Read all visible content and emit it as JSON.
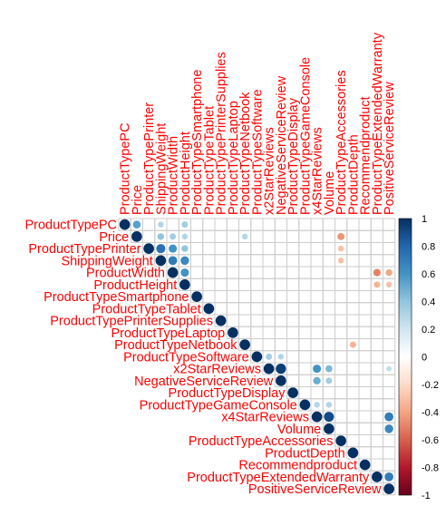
{
  "chart_data": {
    "type": "heatmap",
    "style": "correlogram-circles-upper-triangle",
    "variables": [
      "ProductTypePC",
      "Price",
      "ProductTypePrinter",
      "ShippingWeight",
      "ProductWidth",
      "ProductHeight",
      "ProductTypeSmartphone",
      "ProductTypeTablet",
      "ProductTypePrinterSupplies",
      "ProductTypeLaptop",
      "ProductTypeNetbook",
      "ProductTypeSoftware",
      "x2StarReviews",
      "NegativeServiceReview",
      "ProductTypeDisplay",
      "ProductTypeGameConsole",
      "x4StarReviews",
      "Volume",
      "ProductTypeAccessories",
      "ProductDepth",
      "Recommendproduct",
      "ProductTypeExtendedWarranty",
      "PositiveServiceReview"
    ],
    "correlations": [
      {
        "row": "ProductTypePC",
        "col": "Price",
        "r": 0.55
      },
      {
        "row": "ProductTypePC",
        "col": "ShippingWeight",
        "r": 0.3
      },
      {
        "row": "ProductTypePC",
        "col": "ProductHeight",
        "r": 0.35
      },
      {
        "row": "Price",
        "col": "ShippingWeight",
        "r": 0.4
      },
      {
        "row": "Price",
        "col": "ProductWidth",
        "r": 0.35
      },
      {
        "row": "Price",
        "col": "ProductHeight",
        "r": 0.3
      },
      {
        "row": "Price",
        "col": "ProductTypeNetbook",
        "r": 0.3
      },
      {
        "row": "Price",
        "col": "ProductTypeAccessories",
        "r": -0.45
      },
      {
        "row": "ProductTypePrinter",
        "col": "ShippingWeight",
        "r": 0.75
      },
      {
        "row": "ProductTypePrinter",
        "col": "ProductWidth",
        "r": 0.6
      },
      {
        "row": "ProductTypePrinter",
        "col": "ProductHeight",
        "r": 0.4
      },
      {
        "row": "ProductTypePrinter",
        "col": "ProductTypeAccessories",
        "r": -0.3
      },
      {
        "row": "ShippingWeight",
        "col": "ProductWidth",
        "r": 0.7
      },
      {
        "row": "ShippingWeight",
        "col": "ProductHeight",
        "r": 0.65
      },
      {
        "row": "ShippingWeight",
        "col": "ProductTypeAccessories",
        "r": -0.3
      },
      {
        "row": "ProductWidth",
        "col": "ProductHeight",
        "r": 0.6
      },
      {
        "row": "ProductWidth",
        "col": "ProductTypeExtendedWarranty",
        "r": -0.5
      },
      {
        "row": "ProductWidth",
        "col": "PositiveServiceReview",
        "r": -0.4
      },
      {
        "row": "ProductHeight",
        "col": "ProductTypeExtendedWarranty",
        "r": -0.35
      },
      {
        "row": "ProductHeight",
        "col": "PositiveServiceReview",
        "r": -0.3
      },
      {
        "row": "ProductTypeNetbook",
        "col": "ProductDepth",
        "r": -0.35
      },
      {
        "row": "ProductTypeSoftware",
        "col": "x2StarReviews",
        "r": 0.35
      },
      {
        "row": "ProductTypeSoftware",
        "col": "NegativeServiceReview",
        "r": 0.3
      },
      {
        "row": "x2StarReviews",
        "col": "NegativeServiceReview",
        "r": 0.95
      },
      {
        "row": "x2StarReviews",
        "col": "x4StarReviews",
        "r": 0.6
      },
      {
        "row": "x2StarReviews",
        "col": "Volume",
        "r": 0.45
      },
      {
        "row": "x2StarReviews",
        "col": "PositiveServiceReview",
        "r": 0.25
      },
      {
        "row": "NegativeServiceReview",
        "col": "x4StarReviews",
        "r": 0.5
      },
      {
        "row": "NegativeServiceReview",
        "col": "Volume",
        "r": 0.35
      },
      {
        "row": "ProductTypeGameConsole",
        "col": "x4StarReviews",
        "r": 0.3
      },
      {
        "row": "ProductTypeGameConsole",
        "col": "Volume",
        "r": 0.3
      },
      {
        "row": "x4StarReviews",
        "col": "Volume",
        "r": 0.9
      },
      {
        "row": "x4StarReviews",
        "col": "PositiveServiceReview",
        "r": 0.7
      },
      {
        "row": "Volume",
        "col": "PositiveServiceReview",
        "r": 0.65
      },
      {
        "row": "ProductTypeExtendedWarranty",
        "col": "PositiveServiceReview",
        "r": 0.7
      }
    ],
    "colorbar": {
      "ticks": [
        "1",
        "0.8",
        "0.6",
        "0.4",
        "0.2",
        "0",
        "-0.2",
        "-0.4",
        "-0.6",
        "-0.8",
        "-1"
      ],
      "range": [
        -1,
        1
      ]
    },
    "colors": {
      "label": "#ff0000",
      "grid": "#cccccc",
      "scale": [
        "#67001F",
        "#B2182B",
        "#D6604D",
        "#F4A582",
        "#FDDBC7",
        "#FFFFFF",
        "#D1E5F0",
        "#92C5DE",
        "#4393C3",
        "#2166AC",
        "#053061"
      ]
    }
  }
}
